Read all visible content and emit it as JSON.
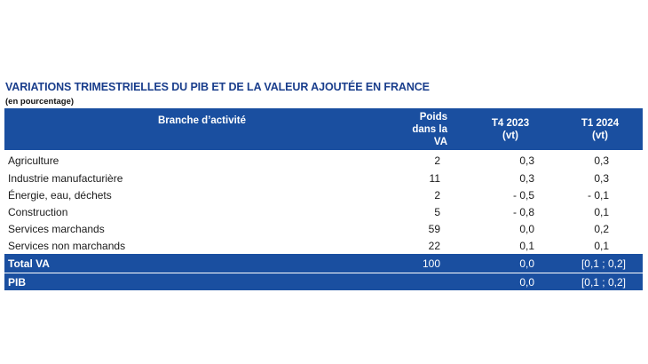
{
  "document": {
    "title": "VARIATIONS TRIMESTRIELLES DU PIB ET DE LA VALEUR AJOUTÉE EN FRANCE",
    "subtitle": "(en pourcentage)"
  },
  "table": {
    "headers": {
      "branch": "Branche d’activité",
      "poids_line1": "Poids",
      "poids_line2": "dans la VA",
      "t4_line1": "T4 2023",
      "t4_line2": "(vt)",
      "t1_line1": "T1 2024",
      "t1_line2": "(vt)"
    },
    "rows": [
      {
        "branch": "Agriculture",
        "poids": "2",
        "t4": "0,3",
        "t1": "0,3"
      },
      {
        "branch": "Industrie manufacturière",
        "poids": "11",
        "t4": "0,3",
        "t1": "0,3"
      },
      {
        "branch": "Énergie, eau, déchets",
        "poids": "2",
        "t4": "- 0,5",
        "t1": "- 0,1"
      },
      {
        "branch": "Construction",
        "poids": "5",
        "t4": "- 0,8",
        "t1": "0,1"
      },
      {
        "branch": "Services marchands",
        "poids": "59",
        "t4": "0,0",
        "t1": "0,2"
      },
      {
        "branch": "Services non marchands",
        "poids": "22",
        "t4": "0,1",
        "t1": "0,1"
      }
    ],
    "footer": [
      {
        "branch": "Total VA",
        "poids": "100",
        "t4": "0,0",
        "t1": "[0,1 ; 0,2]"
      },
      {
        "branch": "PIB",
        "poids": "",
        "t4": "0,0",
        "t1": "[0,1 ; 0,2]"
      }
    ]
  },
  "colors": {
    "title": "#1a3e8c",
    "header_bg": "#1a4fa0"
  }
}
